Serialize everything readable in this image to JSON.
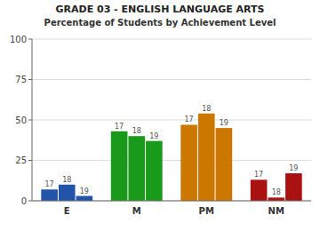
{
  "chart_data": {
    "type": "bar",
    "title": "GRADE 03 - ENGLISH LANGUAGE ARTS",
    "subtitle": "Percentage of Students by Achievement Level",
    "categories": [
      "E",
      "M",
      "PM",
      "NM"
    ],
    "colors": [
      "#2255aa",
      "#1a9a1a",
      "#cc7700",
      "#aa1111"
    ],
    "series": [
      {
        "name": "17",
        "values": [
          7,
          43,
          47,
          13
        ]
      },
      {
        "name": "18",
        "values": [
          10,
          40,
          54,
          2
        ]
      },
      {
        "name": "19",
        "values": [
          3,
          37,
          45,
          17
        ]
      }
    ],
    "ylim": [
      0,
      100
    ],
    "yticks": [
      0,
      25,
      50,
      75,
      100
    ],
    "grid": true
  }
}
